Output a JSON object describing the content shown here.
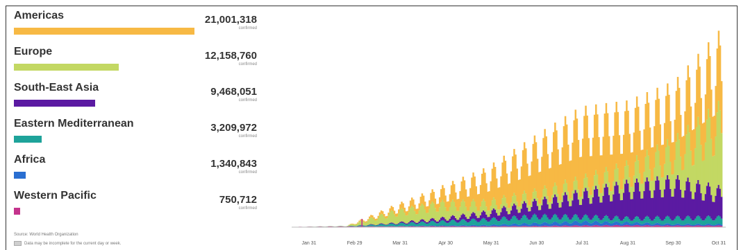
{
  "chart_data": {
    "type": "area",
    "stacked": true,
    "x_ticks": [
      "Jan 31",
      "Feb 29",
      "Mar 31",
      "Apr 30",
      "May 31",
      "Jun 30",
      "Jul 31",
      "Aug 31",
      "Sep 30",
      "Oct 31"
    ],
    "regions": [
      {
        "name": "Americas",
        "total": "21,001,318",
        "sub": "confirmed",
        "color": "#f7b944",
        "bar_fraction": 1.0
      },
      {
        "name": "Europe",
        "total": "12,158,760",
        "sub": "confirmed",
        "color": "#c3d863",
        "bar_fraction": 0.579
      },
      {
        "name": "South-East Asia",
        "total": "9,468,051",
        "sub": "confirmed",
        "color": "#5b1aa2",
        "bar_fraction": 0.451
      },
      {
        "name": "Eastern Mediterranean",
        "total": "3,209,972",
        "sub": "confirmed",
        "color": "#1ea39a",
        "bar_fraction": 0.153
      },
      {
        "name": "Africa",
        "total": "1,340,843",
        "sub": "confirmed",
        "color": "#2a6fd1",
        "bar_fraction": 0.064
      },
      {
        "name": "Western Pacific",
        "total": "750,712",
        "sub": "confirmed",
        "color": "#c4338c",
        "bar_fraction": 0.036
      }
    ],
    "stack_order": [
      "Western Pacific",
      "Africa",
      "Eastern Mediterranean",
      "South-East Asia",
      "Europe",
      "Americas"
    ],
    "months": [
      {
        "month": "Jan",
        "wp": 0.2,
        "af": 0,
        "em": 0,
        "sea": 0,
        "eu": 0,
        "am": 0
      },
      {
        "month": "Feb",
        "wp": 0.4,
        "af": 0,
        "em": 0.1,
        "sea": 0,
        "eu": 0.1,
        "am": 0
      },
      {
        "month": "Mar",
        "wp": 0.4,
        "af": 0.1,
        "em": 1.2,
        "sea": 0.4,
        "eu": 5.5,
        "am": 2.0
      },
      {
        "month": "Apr",
        "wp": 0.5,
        "af": 0.3,
        "em": 2.2,
        "sea": 1.4,
        "eu": 7.5,
        "am": 6.0
      },
      {
        "month": "May",
        "wp": 0.5,
        "af": 0.6,
        "em": 3.0,
        "sea": 3.4,
        "eu": 4.8,
        "am": 14.0
      },
      {
        "month": "Jun",
        "wp": 0.6,
        "af": 1.4,
        "em": 3.8,
        "sea": 6.5,
        "eu": 4.5,
        "am": 23.0
      },
      {
        "month": "Jul",
        "wp": 0.9,
        "af": 2.0,
        "em": 2.8,
        "sea": 11.0,
        "eu": 6.0,
        "am": 30.0
      },
      {
        "month": "Aug",
        "wp": 1.0,
        "af": 1.4,
        "em": 2.4,
        "sea": 16.0,
        "eu": 8.5,
        "am": 26.0
      },
      {
        "month": "Sep",
        "wp": 0.8,
        "af": 0.8,
        "em": 3.4,
        "sea": 18.0,
        "eu": 17.0,
        "am": 24.0
      },
      {
        "month": "Oct",
        "wp": 0.8,
        "af": 0.7,
        "em": 3.6,
        "sea": 13.0,
        "eu": 38.0,
        "am": 31.0
      }
    ],
    "ymax": 90,
    "grid": false,
    "legend_placement": "left"
  },
  "footer": {
    "source": "Source: World Health Organization",
    "note": "Data may be incomplete for the current day or week."
  }
}
